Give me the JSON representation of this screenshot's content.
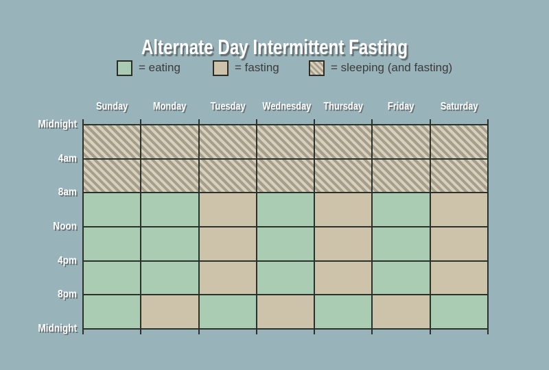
{
  "title": "Alternate Day Intermittent Fasting",
  "legend": {
    "items": [
      {
        "key": "eating",
        "label": "= eating"
      },
      {
        "key": "fasting",
        "label": "= fasting"
      },
      {
        "key": "sleeping",
        "label": "= sleeping (and fasting)"
      }
    ]
  },
  "colors": {
    "background": "#99b3bb",
    "eating": "#a9ccb3",
    "fasting": "#cdc3aa",
    "sleeping_stripe_light": "#d8d0bb",
    "sleeping_stripe_dark": "#a69e8d",
    "grid_line": "#2a302a",
    "label_text": "#ffffff",
    "legend_text": "#3b3b39"
  },
  "chart_data": {
    "type": "heatmap",
    "title": "Alternate Day Intermittent Fasting",
    "columns": [
      "Sunday",
      "Monday",
      "Tuesday",
      "Wednesday",
      "Thursday",
      "Friday",
      "Saturday"
    ],
    "row_boundary_labels": [
      "Midnight",
      "4am",
      "8am",
      "Noon",
      "4pm",
      "8pm",
      "Midnight"
    ],
    "time_bins": [
      "Midnight-4am",
      "4am-8am",
      "8am-Noon",
      "Noon-4pm",
      "4pm-8pm",
      "8pm-Midnight"
    ],
    "values": [
      [
        "sleeping",
        "sleeping",
        "sleeping",
        "sleeping",
        "sleeping",
        "sleeping",
        "sleeping"
      ],
      [
        "sleeping",
        "sleeping",
        "sleeping",
        "sleeping",
        "sleeping",
        "sleeping",
        "sleeping"
      ],
      [
        "eating",
        "eating",
        "fasting",
        "eating",
        "fasting",
        "eating",
        "fasting"
      ],
      [
        "eating",
        "eating",
        "fasting",
        "eating",
        "fasting",
        "eating",
        "fasting"
      ],
      [
        "eating",
        "eating",
        "fasting",
        "eating",
        "fasting",
        "eating",
        "fasting"
      ],
      [
        "eating",
        "fasting",
        "eating",
        "fasting",
        "eating",
        "fasting",
        "eating"
      ]
    ],
    "legend_position": "top",
    "legend_entries": [
      "eating",
      "fasting",
      "sleeping (and fasting)"
    ]
  }
}
